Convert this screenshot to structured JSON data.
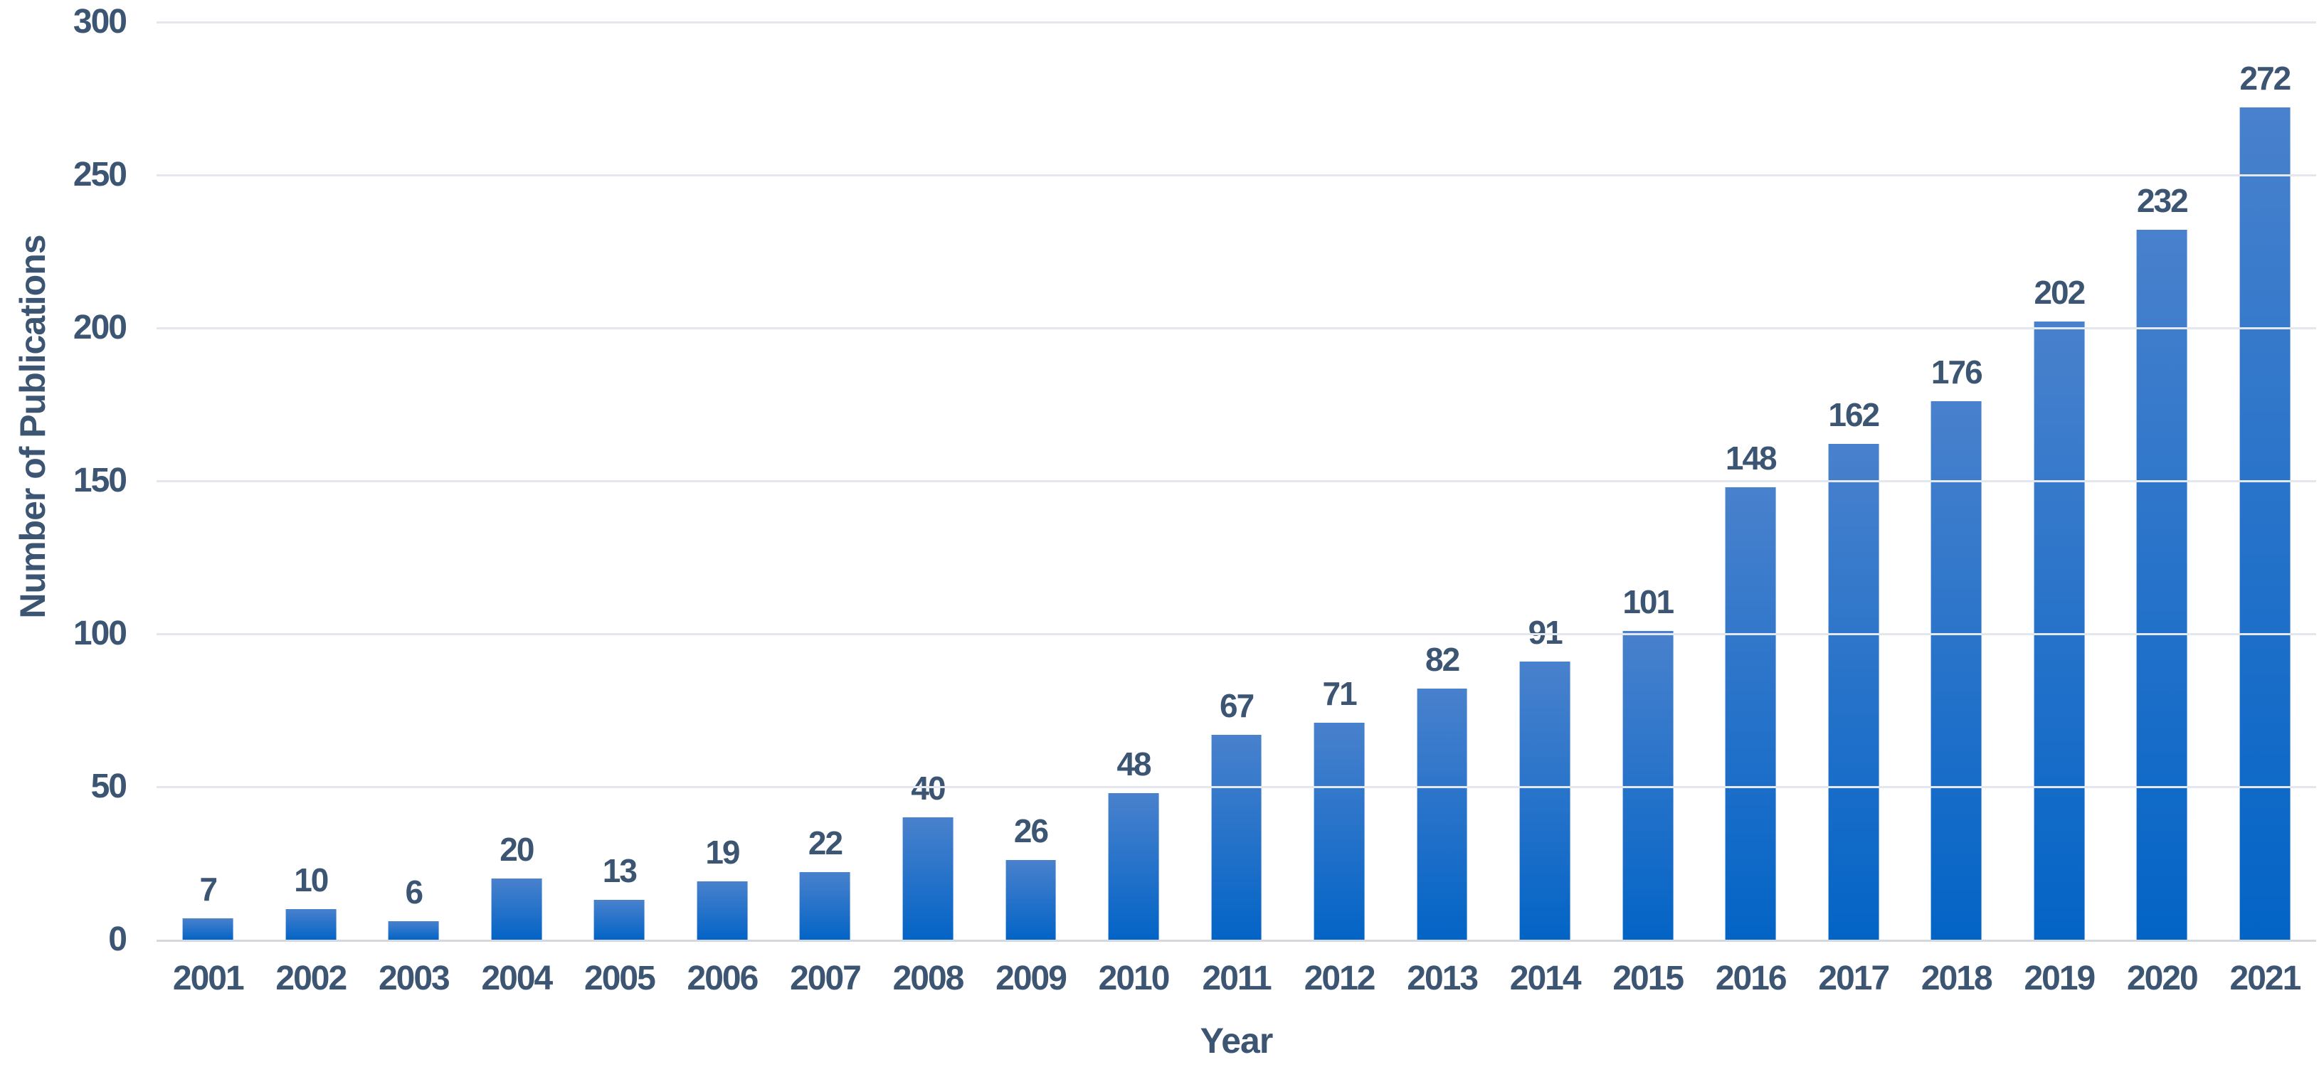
{
  "chart_data": {
    "type": "bar",
    "title": "",
    "xlabel": "Year",
    "ylabel": "Number of Publications",
    "categories": [
      "2001",
      "2002",
      "2003",
      "2004",
      "2005",
      "2006",
      "2007",
      "2008",
      "2009",
      "2010",
      "2011",
      "2012",
      "2013",
      "2014",
      "2015",
      "2016",
      "2017",
      "2018",
      "2019",
      "2020",
      "2021"
    ],
    "values": [
      7,
      10,
      6,
      20,
      13,
      19,
      22,
      40,
      26,
      48,
      67,
      71,
      82,
      91,
      101,
      148,
      162,
      176,
      202,
      232,
      272
    ],
    "data_labels_shown": true,
    "ylim": [
      0,
      300
    ],
    "yticks": [
      300,
      250,
      200,
      150,
      100,
      50,
      0
    ],
    "grid": "horizontal",
    "legend": "none",
    "colors": {
      "bar_gradient_top": "#4981CD",
      "bar_gradient_bottom": "#0364C6",
      "label_text": "#3C5573",
      "gridline": "#E4E7ED",
      "axis_line": "#D5D8DE",
      "background": "#FFFFFF"
    }
  }
}
